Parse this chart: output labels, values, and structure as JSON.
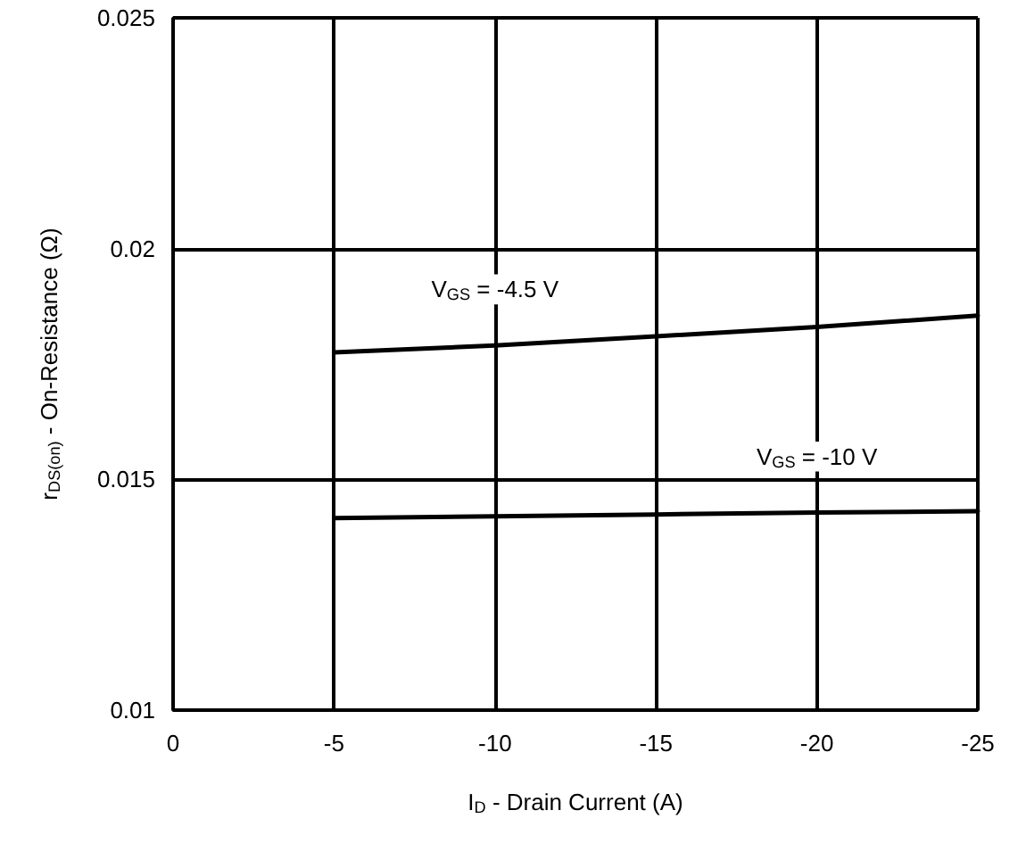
{
  "chart_data": {
    "type": "line",
    "xlabel": "I$_{D}$ - Drain Current (A)",
    "ylabel": "r$_{DS(on)}$ - On-Resistance (Ω)",
    "xlim": [
      0,
      -25
    ],
    "xticks": [
      0,
      -5,
      -10,
      -15,
      -20,
      -25
    ],
    "ylim": [
      0.01,
      0.025
    ],
    "yticks": [
      0.01,
      0.015,
      0.02,
      0.025
    ],
    "grid": true,
    "marker": "none",
    "line_style": "solid",
    "legend": false,
    "series": [
      {
        "name": "V$_{GS}$ = -4.5 V",
        "color": "#000000",
        "x": [
          -5,
          -10,
          -15,
          -20,
          -25
        ],
        "values": [
          0.01775,
          0.0179,
          0.0181,
          0.0183,
          0.01855
        ]
      },
      {
        "name": "V$_{GS}$ = -10 V",
        "color": "#000000",
        "x": [
          -5,
          -10,
          -15,
          -20,
          -25
        ],
        "values": [
          0.01416,
          0.0142,
          0.01424,
          0.01428,
          0.01431
        ]
      }
    ]
  }
}
